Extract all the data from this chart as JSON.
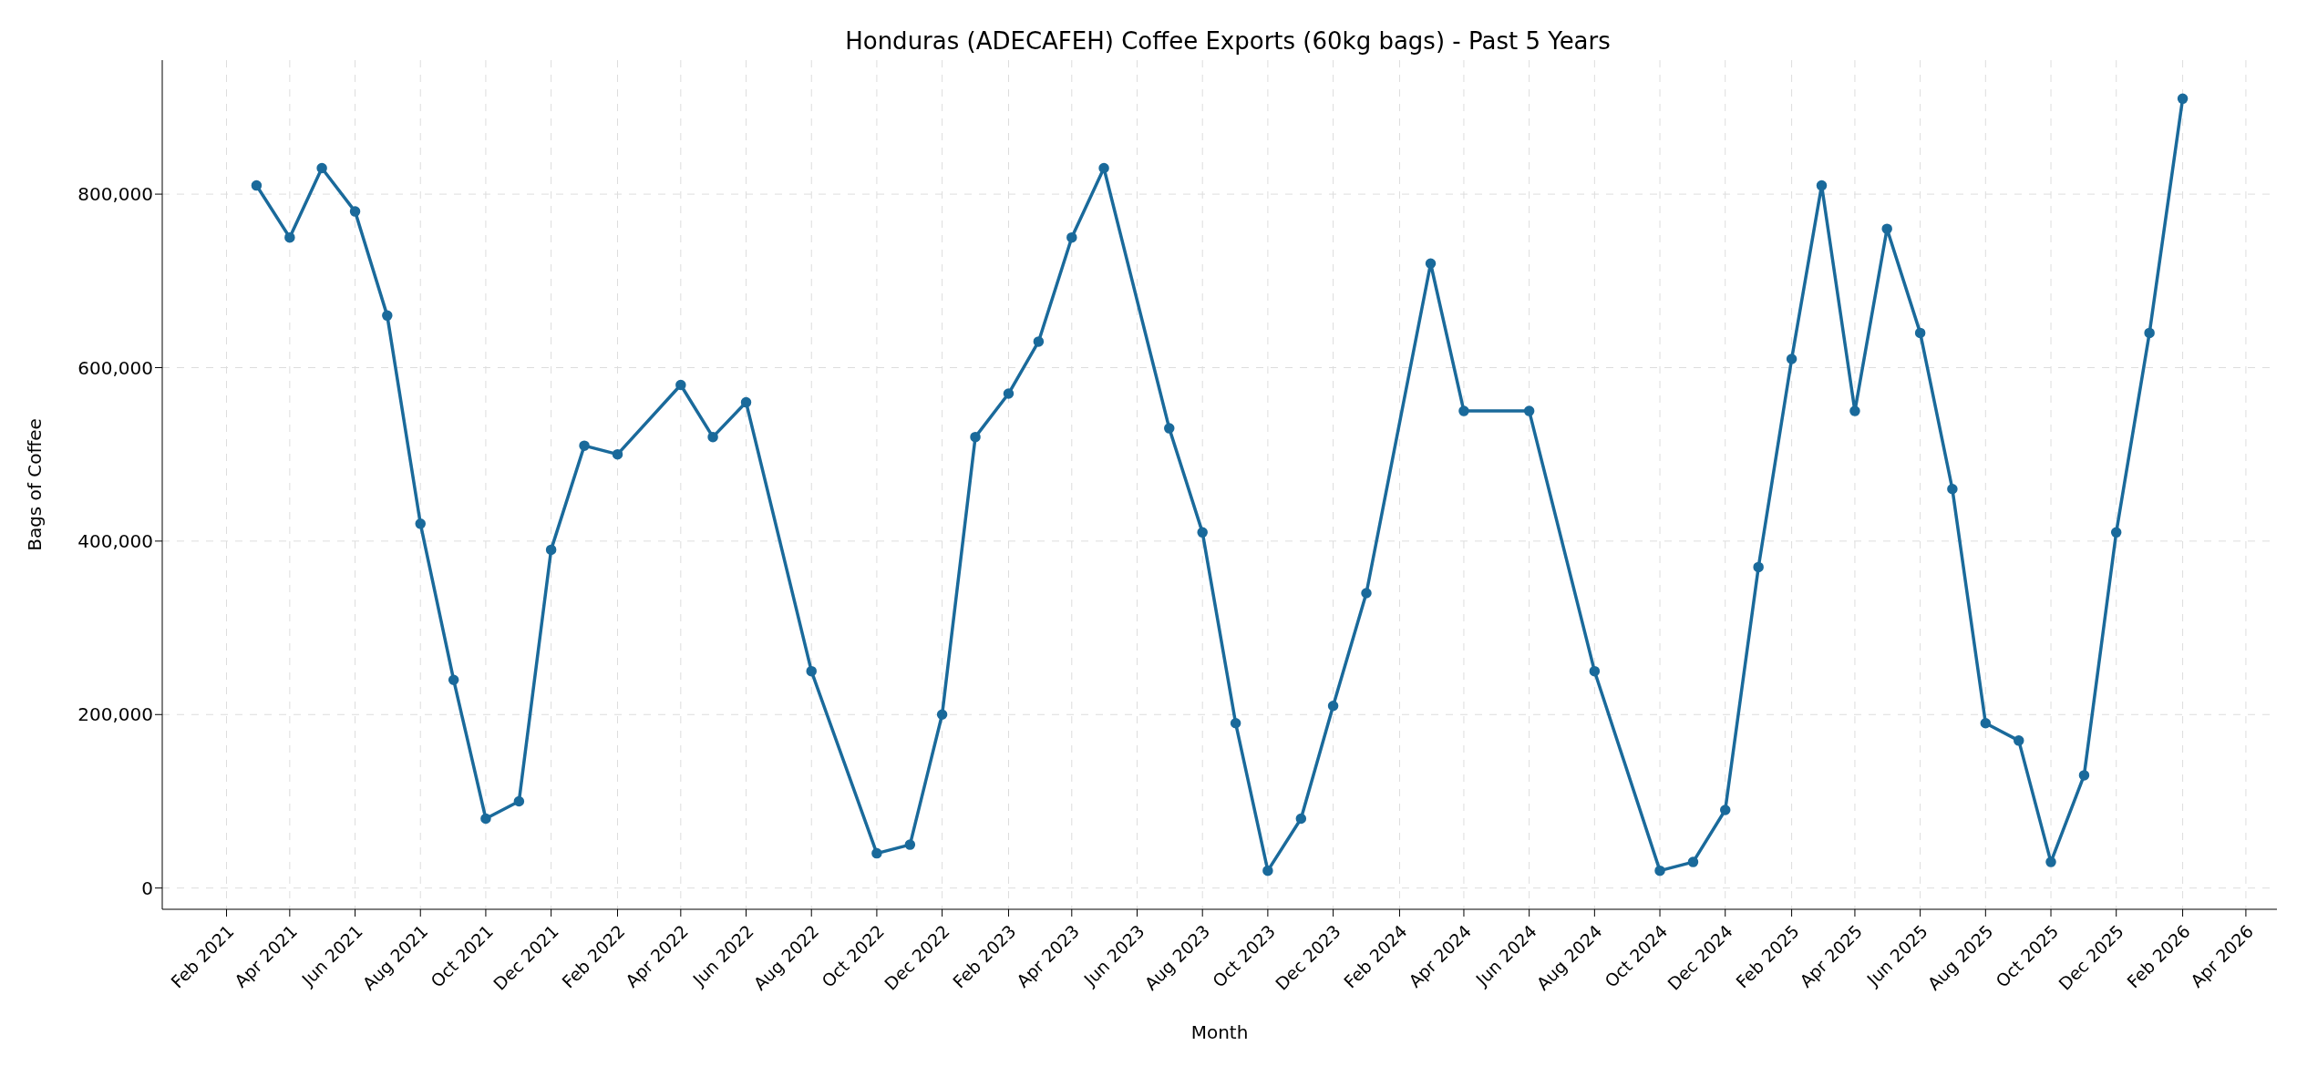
{
  "chart_data": {
    "type": "line",
    "title": "Honduras (ADECAFEH) Coffee Exports (60kg bags) - Past 5 Years",
    "xlabel": "Month",
    "ylabel": "Bags of Coffee",
    "x": [
      "2021-03-01",
      "2021-04-01",
      "2021-05-01",
      "2021-06-01",
      "2021-07-01",
      "2021-08-01",
      "2021-09-01",
      "2021-10-01",
      "2021-11-01",
      "2021-12-01",
      "2022-01-01",
      "2022-02-01",
      "2022-04-01",
      "2022-05-01",
      "2022-06-01",
      "2022-08-01",
      "2022-10-01",
      "2022-11-01",
      "2022-12-01",
      "2023-01-01",
      "2023-02-01",
      "2023-03-01",
      "2023-04-01",
      "2023-05-01",
      "2023-07-01",
      "2023-08-01",
      "2023-09-01",
      "2023-10-01",
      "2023-11-01",
      "2023-12-01",
      "2024-01-01",
      "2024-03-01",
      "2024-04-01",
      "2024-06-01",
      "2024-08-01",
      "2024-10-01",
      "2024-11-01",
      "2024-12-01",
      "2025-01-01",
      "2025-02-01",
      "2025-03-01",
      "2025-04-01",
      "2025-05-01",
      "2025-06-01",
      "2025-07-01",
      "2025-08-01",
      "2025-09-01",
      "2025-10-01",
      "2025-11-01",
      "2025-12-01",
      "2026-01-01",
      "2026-02-01"
    ],
    "series": [
      {
        "color": "#1a6a9b",
        "values": [
          810000,
          750000,
          830000,
          780000,
          660000,
          420000,
          240000,
          80000,
          100000,
          390000,
          510000,
          500000,
          580000,
          520000,
          560000,
          250000,
          40000,
          50000,
          200000,
          520000,
          570000,
          630000,
          750000,
          830000,
          530000,
          410000,
          190000,
          20000,
          80000,
          210000,
          340000,
          720000,
          550000,
          550000,
          250000,
          20000,
          30000,
          90000,
          370000,
          610000,
          810000,
          550000,
          760000,
          640000,
          460000,
          190000,
          170000,
          30000,
          130000,
          410000,
          640000,
          910000
        ]
      }
    ],
    "xlim": [
      "2020-12-03",
      "2026-04-30"
    ],
    "xticks": [
      {
        "value": "2021-02-01",
        "label": "Feb 2021"
      },
      {
        "value": "2021-04-01",
        "label": "Apr 2021"
      },
      {
        "value": "2021-06-01",
        "label": "Jun 2021"
      },
      {
        "value": "2021-08-01",
        "label": "Aug 2021"
      },
      {
        "value": "2021-10-01",
        "label": "Oct 2021"
      },
      {
        "value": "2021-12-01",
        "label": "Dec 2021"
      },
      {
        "value": "2022-02-01",
        "label": "Feb 2022"
      },
      {
        "value": "2022-04-01",
        "label": "Apr 2022"
      },
      {
        "value": "2022-06-01",
        "label": "Jun 2022"
      },
      {
        "value": "2022-08-01",
        "label": "Aug 2022"
      },
      {
        "value": "2022-10-01",
        "label": "Oct 2022"
      },
      {
        "value": "2022-12-01",
        "label": "Dec 2022"
      },
      {
        "value": "2023-02-01",
        "label": "Feb 2023"
      },
      {
        "value": "2023-04-01",
        "label": "Apr 2023"
      },
      {
        "value": "2023-06-01",
        "label": "Jun 2023"
      },
      {
        "value": "2023-08-01",
        "label": "Aug 2023"
      },
      {
        "value": "2023-10-01",
        "label": "Oct 2023"
      },
      {
        "value": "2023-12-01",
        "label": "Dec 2023"
      },
      {
        "value": "2024-02-01",
        "label": "Feb 2024"
      },
      {
        "value": "2024-04-01",
        "label": "Apr 2024"
      },
      {
        "value": "2024-06-01",
        "label": "Jun 2024"
      },
      {
        "value": "2024-08-01",
        "label": "Aug 2024"
      },
      {
        "value": "2024-10-01",
        "label": "Oct 2024"
      },
      {
        "value": "2024-12-01",
        "label": "Dec 2024"
      },
      {
        "value": "2025-02-01",
        "label": "Feb 2025"
      },
      {
        "value": "2025-04-01",
        "label": "Apr 2025"
      },
      {
        "value": "2025-06-01",
        "label": "Jun 2025"
      },
      {
        "value": "2025-08-01",
        "label": "Aug 2025"
      },
      {
        "value": "2025-10-01",
        "label": "Oct 2025"
      },
      {
        "value": "2025-12-01",
        "label": "Dec 2025"
      },
      {
        "value": "2026-02-01",
        "label": "Feb 2026"
      },
      {
        "value": "2026-04-01",
        "label": "Apr 2026"
      }
    ],
    "ylim": [
      -24500,
      954500
    ],
    "yticks": [
      {
        "value": 0,
        "label": "0"
      },
      {
        "value": 200000,
        "label": "200,000"
      },
      {
        "value": 400000,
        "label": "400,000"
      },
      {
        "value": 600000,
        "label": "600,000"
      },
      {
        "value": 800000,
        "label": "800,000"
      }
    ],
    "grid": true,
    "marker": "circle",
    "line_style": "solid"
  }
}
